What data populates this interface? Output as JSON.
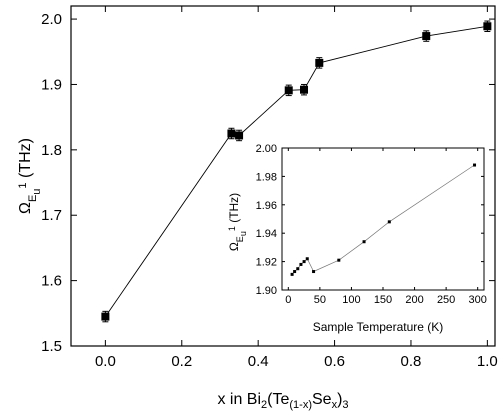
{
  "chart_data": [
    {
      "type": "scatter",
      "connected": true,
      "marker": "square",
      "error_bars": true,
      "xlabel": {
        "pre": "x in Bi",
        "s1": "2",
        "mid": "(Te",
        "s2": "(1-x)",
        "mid2": "Se",
        "s3": "x",
        "post": ")",
        "s4": "3"
      },
      "ylabel": {
        "main": "Ω",
        "sub1": "E",
        "sub2": "u",
        "sup": "1",
        "post": " (THz)"
      },
      "xlim": [
        -0.09,
        1.02
      ],
      "ylim": [
        1.5,
        2.02
      ],
      "xticks": [
        0.0,
        0.2,
        0.4,
        0.6,
        0.8,
        1.0
      ],
      "xtick_labels": [
        "0.0",
        "0.2",
        "0.4",
        "0.6",
        "0.8",
        "1.0"
      ],
      "yticks": [
        1.5,
        1.6,
        1.7,
        1.8,
        1.9,
        2.0
      ],
      "ytick_labels": [
        "1.5",
        "1.6",
        "1.7",
        "1.8",
        "1.9",
        "2.0"
      ],
      "grid": false,
      "x": [
        0.0,
        0.33,
        0.35,
        0.48,
        0.52,
        0.56,
        0.84,
        1.0
      ],
      "y": [
        1.545,
        1.825,
        1.822,
        1.891,
        1.892,
        1.933,
        1.974,
        1.989
      ],
      "yerr": [
        0.008,
        0.008,
        0.008,
        0.008,
        0.008,
        0.008,
        0.008,
        0.008
      ]
    },
    {
      "type": "scatter",
      "connected": true,
      "marker": "square",
      "placement": "inset",
      "xlabel": "Sample Temperature (K)",
      "ylabel": {
        "main": "Ω",
        "sub1": "E",
        "sub2": "u",
        "sup": "1",
        "post": " (THz)"
      },
      "xlim": [
        -10,
        310
      ],
      "ylim": [
        1.9,
        2.0
      ],
      "xticks": [
        0,
        50,
        100,
        150,
        200,
        250,
        300
      ],
      "xtick_labels": [
        "0",
        "50",
        "100",
        "150",
        "200",
        "250",
        "300"
      ],
      "yticks": [
        1.9,
        1.92,
        1.94,
        1.96,
        1.98,
        2.0
      ],
      "ytick_labels": [
        "1.90",
        "1.92",
        "1.94",
        "1.96",
        "1.98",
        "2.00"
      ],
      "grid": false,
      "x": [
        6,
        10,
        15,
        20,
        25,
        30,
        40,
        80,
        120,
        160,
        295
      ],
      "y": [
        1.911,
        1.913,
        1.915,
        1.918,
        1.92,
        1.922,
        1.913,
        1.921,
        1.934,
        1.948,
        1.988
      ]
    }
  ]
}
